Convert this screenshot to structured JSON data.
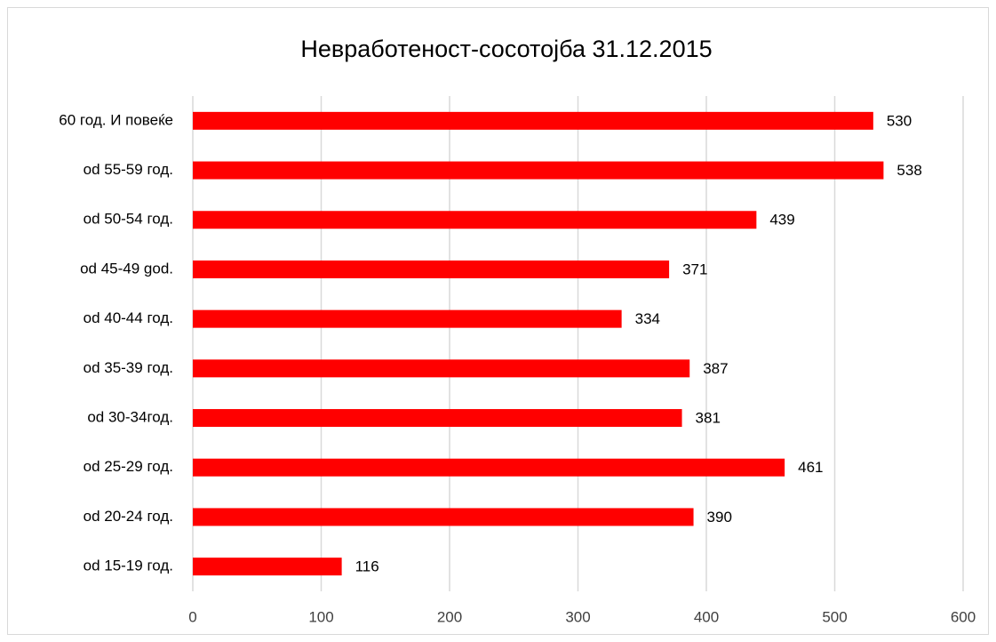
{
  "chart_data": {
    "type": "bar",
    "orientation": "horizontal",
    "title": "Невработеност-сосотојба  31.12.2015",
    "categories": [
      "60 год. И повеќе",
      "od 55-59 год.",
      "od 50-54 год.",
      "od 45-49 god.",
      "od 40-44 год.",
      "od 35-39 год.",
      "od 30-34год.",
      "od 25-29 год.",
      "od 20-24 год.",
      "od 15-19 год."
    ],
    "values": [
      530,
      538,
      439,
      371,
      334,
      387,
      381,
      461,
      390,
      116
    ],
    "color": "#ff0000",
    "xlim": [
      0,
      600
    ],
    "xticks": [
      0,
      100,
      200,
      300,
      400,
      500,
      600
    ],
    "grid": true
  }
}
